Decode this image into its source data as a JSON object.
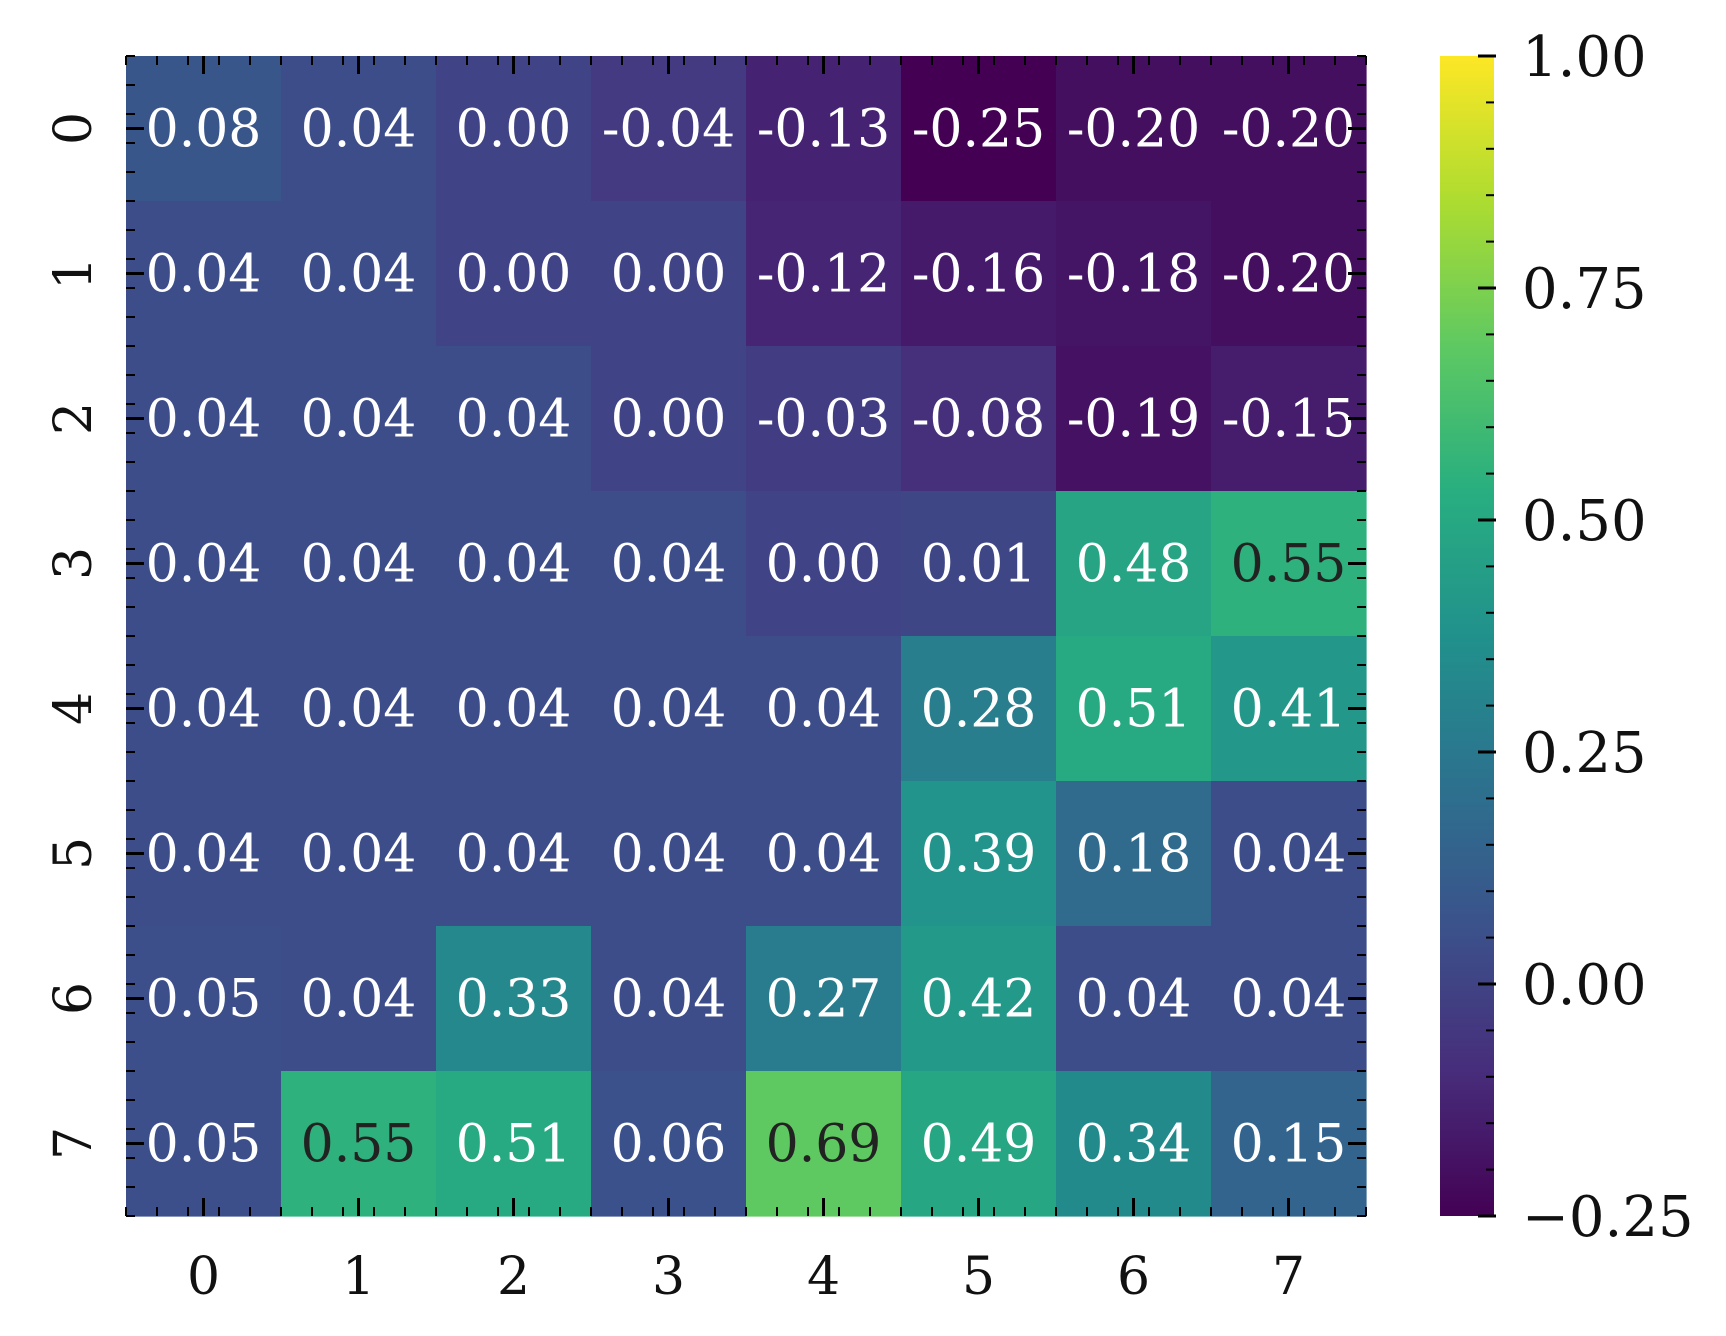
{
  "chart_data": {
    "type": "heatmap",
    "title": "",
    "xlabel": "",
    "ylabel": "",
    "x_categories": [
      "0",
      "1",
      "2",
      "3",
      "4",
      "5",
      "6",
      "7"
    ],
    "y_categories": [
      "0",
      "1",
      "2",
      "3",
      "4",
      "5",
      "6",
      "7"
    ],
    "values": [
      [
        0.08,
        0.04,
        0.0,
        -0.04,
        -0.13,
        -0.25,
        -0.2,
        -0.2
      ],
      [
        0.04,
        0.04,
        0.0,
        0.0,
        -0.12,
        -0.16,
        -0.18,
        -0.2
      ],
      [
        0.04,
        0.04,
        0.04,
        0.0,
        -0.03,
        -0.08,
        -0.19,
        -0.15
      ],
      [
        0.04,
        0.04,
        0.04,
        0.04,
        0.0,
        0.01,
        0.48,
        0.55
      ],
      [
        0.04,
        0.04,
        0.04,
        0.04,
        0.04,
        0.28,
        0.51,
        0.41
      ],
      [
        0.04,
        0.04,
        0.04,
        0.04,
        0.04,
        0.39,
        0.18,
        0.04
      ],
      [
        0.05,
        0.04,
        0.33,
        0.04,
        0.27,
        0.42,
        0.04,
        0.04
      ],
      [
        0.05,
        0.55,
        0.51,
        0.06,
        0.69,
        0.49,
        0.34,
        0.15
      ]
    ],
    "value_format": "2 decimals",
    "colormap": "viridis",
    "colorbar": {
      "range": [
        -0.25,
        1.0
      ],
      "ticks": [
        -0.25,
        0.0,
        0.25,
        0.5,
        0.75,
        1.0
      ],
      "tick_labels": [
        "−0.25",
        "0.00",
        "0.25",
        "0.50",
        "0.75",
        "1.00"
      ],
      "placement": "right"
    },
    "label_colors": {
      "light": "#ffffff",
      "dark": "#222222"
    },
    "grid": false
  }
}
